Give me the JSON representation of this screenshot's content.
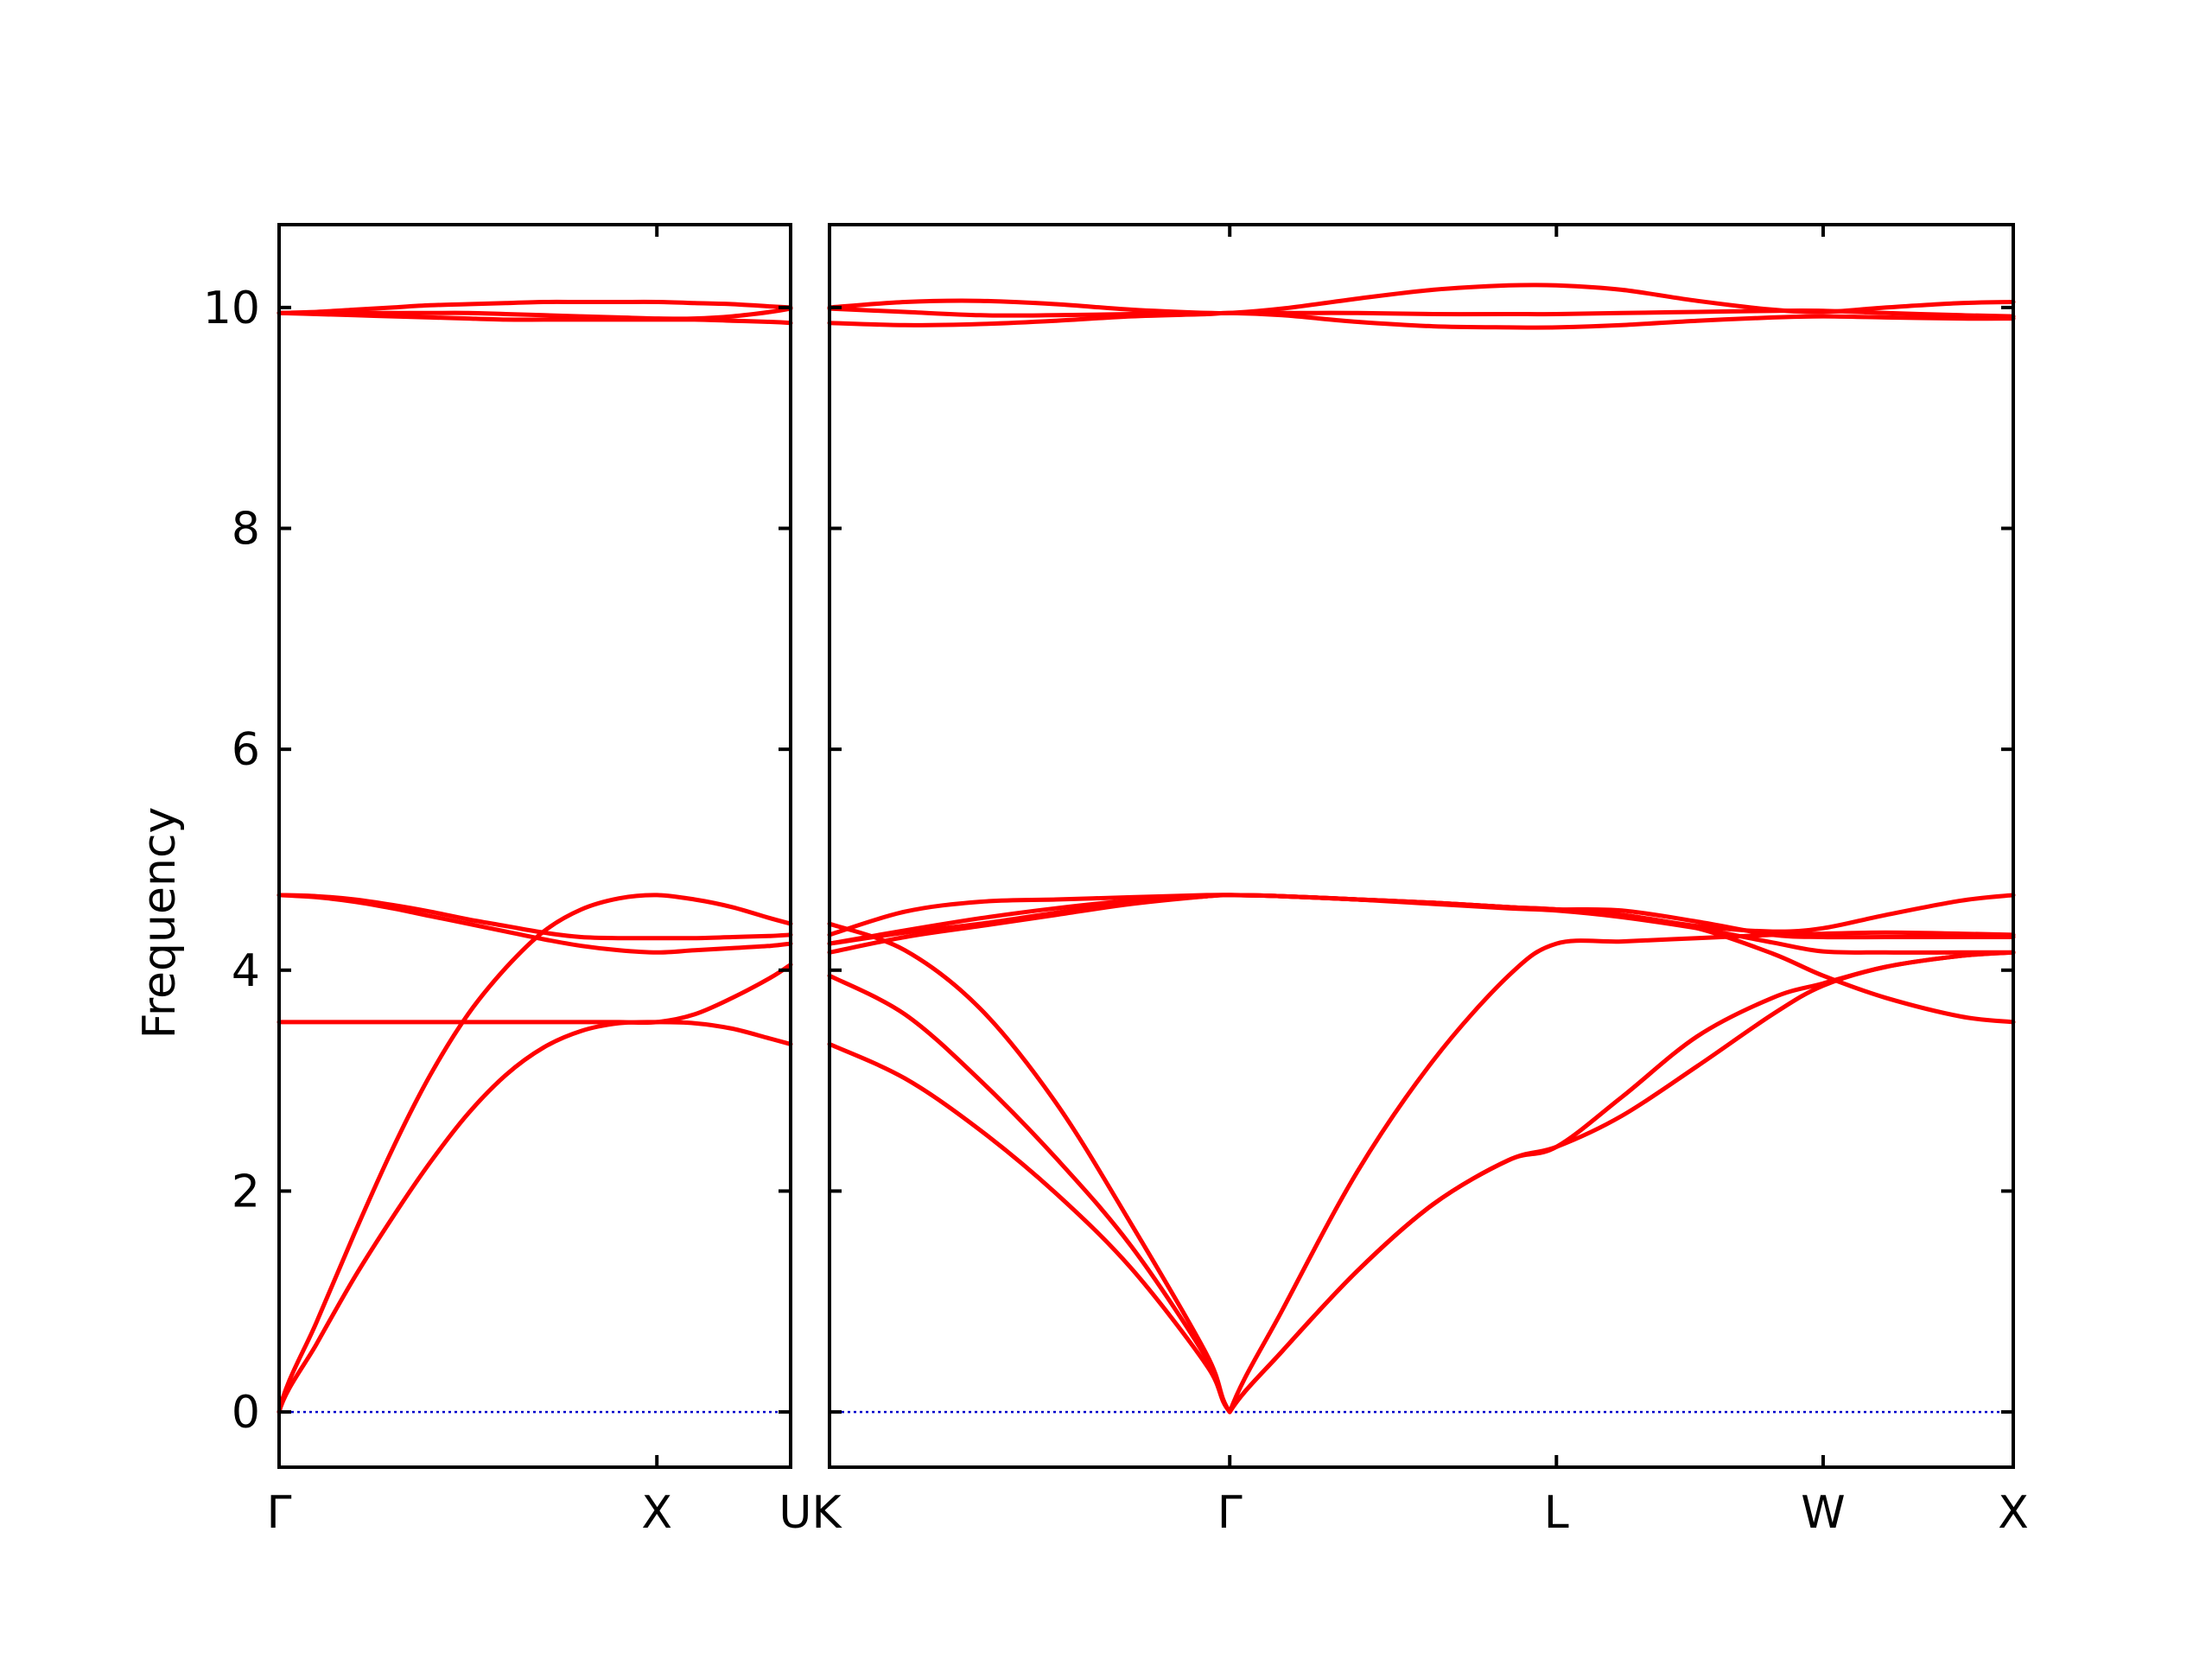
{
  "chart_data": {
    "type": "line",
    "title": "",
    "xlabel": "",
    "ylabel": "Frequency",
    "ylim": [
      -0.5,
      10.75
    ],
    "yticks": [
      0,
      2,
      4,
      6,
      8,
      10
    ],
    "grid": false,
    "legend": "none",
    "colors": {
      "band": "#ff0000",
      "zero_line": "#0000cc",
      "frame": "#000000"
    },
    "panels": [
      {
        "path": [
          "Γ",
          "X",
          "U"
        ],
        "xlim": [
          0,
          1.354
        ],
        "x_labels": [
          {
            "x": 0,
            "label": "Γ"
          },
          {
            "x": 1.0,
            "label": "X"
          }
        ],
        "series": [
          {
            "x": [
              0,
              0.1,
              0.2,
              0.3,
              0.4,
              0.5,
              0.6,
              0.7,
              0.8,
              0.9,
              1.0,
              1.1,
              1.2,
              1.3,
              1.354
            ],
            "y": [
              0,
              0.62,
              1.22,
              1.76,
              2.26,
              2.7,
              3.05,
              3.3,
              3.45,
              3.52,
              3.53,
              3.52,
              3.47,
              3.38,
              3.33
            ]
          },
          {
            "x": [
              0,
              0.1,
              0.2,
              0.3,
              0.4,
              0.5,
              0.6,
              0.7,
              0.8,
              0.9,
              1.0,
              1.1,
              1.2,
              1.3,
              1.354
            ],
            "y": [
              0,
              0.82,
              1.62,
              2.38,
              3.05,
              3.6,
              4.02,
              4.35,
              4.55,
              4.65,
              4.68,
              4.64,
              4.57,
              4.47,
              4.42
            ]
          },
          {
            "x": [
              0,
              0.1,
              0.2,
              0.3,
              0.4,
              0.5,
              0.6,
              0.7,
              0.8,
              0.9,
              1.0,
              1.1,
              1.2,
              1.3,
              1.354
            ],
            "y": [
              4.68,
              4.66,
              4.62,
              4.56,
              4.49,
              4.42,
              4.35,
              4.28,
              4.22,
              4.18,
              4.16,
              4.18,
              4.2,
              4.22,
              4.24
            ]
          },
          {
            "x": [
              0,
              0.1,
              0.2,
              0.3,
              0.4,
              0.5,
              0.6,
              0.7,
              0.8,
              0.9,
              1.0,
              1.1,
              1.2,
              1.3,
              1.354
            ],
            "y": [
              4.68,
              4.67,
              4.64,
              4.59,
              4.53,
              4.46,
              4.4,
              4.34,
              4.3,
              4.29,
              4.29,
              4.29,
              4.3,
              4.31,
              4.32
            ]
          },
          {
            "x": [
              0,
              0.1,
              0.2,
              0.3,
              0.4,
              0.5,
              0.6,
              0.7,
              0.8,
              0.9,
              1.0,
              1.1,
              1.2,
              1.3,
              1.354
            ],
            "y": [
              3.53,
              3.53,
              3.53,
              3.53,
              3.53,
              3.53,
              3.53,
              3.53,
              3.53,
              3.53,
              3.53,
              3.6,
              3.75,
              3.93,
              4.05
            ]
          },
          {
            "x": [
              0,
              0.1,
              0.2,
              0.3,
              0.4,
              0.5,
              0.6,
              0.7,
              0.8,
              0.9,
              1.0,
              1.1,
              1.2,
              1.3,
              1.354
            ],
            "y": [
              9.95,
              9.94,
              9.93,
              9.92,
              9.91,
              9.9,
              9.89,
              9.89,
              9.89,
              9.89,
              9.89,
              9.89,
              9.88,
              9.87,
              9.86
            ]
          },
          {
            "x": [
              0,
              0.1,
              0.2,
              0.3,
              0.4,
              0.5,
              0.6,
              0.7,
              0.8,
              0.9,
              1.0,
              1.1,
              1.2,
              1.3,
              1.354
            ],
            "y": [
              9.95,
              9.96,
              9.98,
              10.0,
              10.02,
              10.03,
              10.04,
              10.05,
              10.05,
              10.05,
              10.05,
              10.04,
              10.03,
              10.01,
              10.0
            ]
          },
          {
            "x": [
              0,
              0.1,
              0.2,
              0.3,
              0.4,
              0.5,
              0.6,
              0.7,
              0.8,
              0.9,
              1.0,
              1.1,
              1.2,
              1.3,
              1.354
            ],
            "y": [
              9.95,
              9.95,
              9.95,
              9.95,
              9.95,
              9.95,
              9.94,
              9.93,
              9.92,
              9.91,
              9.9,
              9.9,
              9.92,
              9.96,
              9.99
            ]
          }
        ]
      },
      {
        "path": [
          "K",
          "Γ",
          "L",
          "W",
          "X"
        ],
        "xlim": [
          0,
          3.138
        ],
        "x_labels": [
          {
            "x": 0,
            "label": "UK"
          },
          {
            "x": 1.061,
            "label": "Γ"
          },
          {
            "x": 1.927,
            "label": "L"
          },
          {
            "x": 2.634,
            "label": "W"
          },
          {
            "x": 3.138,
            "label": "X"
          }
        ],
        "series": [
          {
            "x": [
              0,
              0.2,
              0.4,
              0.6,
              0.8,
              1.0,
              1.061,
              1.2,
              1.4,
              1.6,
              1.8,
              1.927,
              2.1,
              2.3,
              2.5,
              2.634,
              2.8,
              3.0,
              3.138
            ],
            "y": [
              3.33,
              3.02,
              2.55,
              1.98,
              1.3,
              0.42,
              0,
              0.55,
              1.28,
              1.88,
              2.28,
              2.4,
              2.68,
              3.13,
              3.6,
              3.86,
              4.03,
              4.13,
              4.16
            ]
          },
          {
            "x": [
              0,
              0.2,
              0.4,
              0.6,
              0.8,
              1.0,
              1.061,
              1.2,
              1.4,
              1.6,
              1.8,
              1.927,
              2.1,
              2.3,
              2.5,
              2.634,
              2.8,
              3.0,
              3.138
            ],
            "y": [
              3.95,
              3.6,
              3.0,
              2.3,
              1.5,
              0.48,
              0,
              0.55,
              1.28,
              1.88,
              2.28,
              2.4,
              2.85,
              3.4,
              3.75,
              3.88,
              4.03,
              4.13,
              4.16
            ]
          },
          {
            "x": [
              0,
              0.2,
              0.4,
              0.6,
              0.8,
              1.0,
              1.061,
              1.2,
              1.4,
              1.6,
              1.8,
              1.927,
              2.1,
              2.3,
              2.5,
              2.634,
              2.8,
              3.0,
              3.138
            ],
            "y": [
              4.42,
              4.18,
              3.65,
              2.8,
              1.7,
              0.52,
              0,
              0.92,
              2.18,
              3.18,
              3.95,
              4.24,
              4.26,
              4.29,
              4.32,
              4.33,
              4.34,
              4.33,
              4.32
            ]
          },
          {
            "x": [
              0,
              0.2,
              0.4,
              0.6,
              0.8,
              1.0,
              1.061,
              1.2,
              1.4,
              1.6,
              1.8,
              1.927,
              2.1,
              2.3,
              2.5,
              2.634,
              2.8,
              3.0,
              3.138
            ],
            "y": [
              4.24,
              4.36,
              4.47,
              4.56,
              4.63,
              4.67,
              4.68,
              4.67,
              4.64,
              4.6,
              4.56,
              4.54,
              4.48,
              4.38,
              4.25,
              4.17,
              4.16,
              4.16,
              4.16
            ]
          },
          {
            "x": [
              0,
              0.2,
              0.4,
              0.6,
              0.8,
              1.0,
              1.061,
              1.2,
              1.4,
              1.6,
              1.8,
              1.927,
              2.1,
              2.3,
              2.5,
              2.634,
              2.8,
              3.0,
              3.138
            ],
            "y": [
              4.32,
              4.53,
              4.62,
              4.64,
              4.66,
              4.68,
              4.68,
              4.67,
              4.64,
              4.61,
              4.57,
              4.55,
              4.54,
              4.44,
              4.32,
              4.3,
              4.3,
              4.3,
              4.3
            ]
          },
          {
            "x": [
              0,
              0.2,
              0.4,
              0.6,
              0.8,
              1.0,
              1.061,
              1.2,
              1.4,
              1.6,
              1.8,
              1.927,
              2.1,
              2.3,
              2.5,
              2.634,
              2.8,
              3.0,
              3.138
            ],
            "y": [
              4.16,
              4.3,
              4.4,
              4.5,
              4.6,
              4.67,
              4.68,
              4.67,
              4.64,
              4.61,
              4.57,
              4.55,
              4.5,
              4.38,
              4.15,
              3.95,
              3.75,
              3.58,
              3.53
            ]
          },
          {
            "x": [
              0,
              0.2,
              0.4,
              0.6,
              0.8,
              1.0,
              1.061,
              1.2,
              1.4,
              1.6,
              1.8,
              1.927,
              2.1,
              2.3,
              2.5,
              2.634,
              2.8,
              3.0,
              3.138
            ],
            "y": [
              4.24,
              4.34,
              4.42,
              4.52,
              4.61,
              4.67,
              4.68,
              4.67,
              4.64,
              4.61,
              4.57,
              4.55,
              4.5,
              4.4,
              4.35,
              4.38,
              4.5,
              4.63,
              4.68
            ]
          },
          {
            "x": [
              0,
              0.2,
              0.4,
              0.6,
              0.8,
              1.0,
              1.061,
              1.2,
              1.4,
              1.6,
              1.8,
              1.927,
              2.1,
              2.3,
              2.5,
              2.634,
              2.8,
              3.0,
              3.138
            ],
            "y": [
              9.86,
              9.84,
              9.85,
              9.88,
              9.92,
              9.94,
              9.95,
              9.93,
              9.87,
              9.83,
              9.82,
              9.82,
              9.84,
              9.88,
              9.91,
              9.92,
              9.91,
              9.9,
              9.9
            ]
          },
          {
            "x": [
              0,
              0.2,
              0.4,
              0.6,
              0.8,
              1.0,
              1.061,
              1.2,
              1.4,
              1.6,
              1.8,
              1.927,
              2.1,
              2.3,
              2.5,
              2.634,
              2.8,
              3.0,
              3.138
            ],
            "y": [
              9.99,
              9.96,
              9.93,
              9.93,
              9.94,
              9.95,
              9.95,
              9.99,
              10.08,
              10.16,
              10.2,
              10.2,
              10.16,
              10.06,
              9.98,
              9.96,
              10.0,
              10.04,
              10.05
            ]
          },
          {
            "x": [
              0,
              0.2,
              0.4,
              0.6,
              0.8,
              1.0,
              1.061,
              1.2,
              1.4,
              1.6,
              1.8,
              1.927,
              2.1,
              2.3,
              2.5,
              2.634,
              2.8,
              3.0,
              3.138
            ],
            "y": [
              10.0,
              10.05,
              10.06,
              10.03,
              9.98,
              9.95,
              9.95,
              9.95,
              9.95,
              9.94,
              9.94,
              9.94,
              9.95,
              9.96,
              9.97,
              9.97,
              9.95,
              9.93,
              9.92
            ]
          }
        ]
      }
    ]
  }
}
